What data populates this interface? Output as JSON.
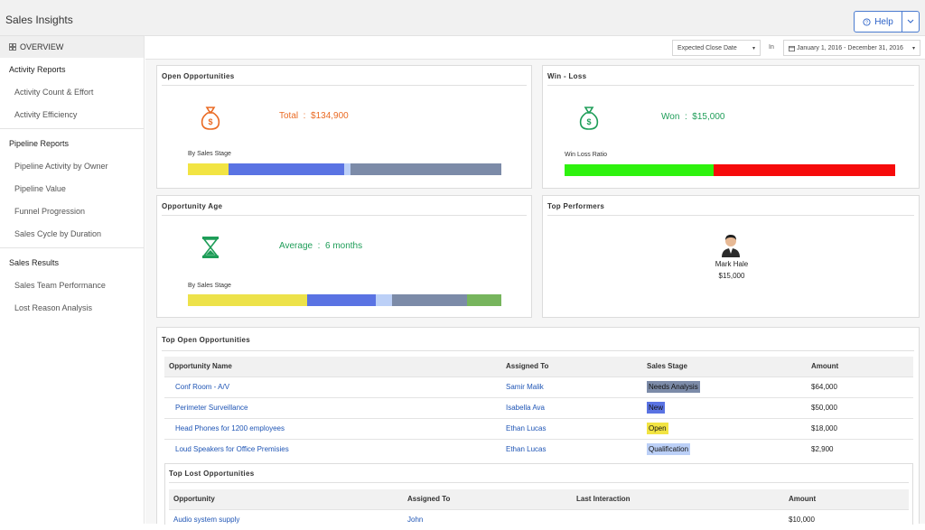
{
  "header": {
    "title": "Sales Insights",
    "help_label": "Help",
    "colors": {
      "accent": "#2d63c8"
    }
  },
  "sidebar": {
    "overview_label": "OVERVIEW",
    "sections": [
      {
        "label": "Activity Reports",
        "items": [
          "Activity Count & Effort",
          "Activity Efficiency"
        ]
      },
      {
        "label": "Pipeline Reports",
        "items": [
          "Pipeline Activity by Owner",
          "Pipeline Value",
          "Funnel Progression",
          "Sales Cycle by Duration"
        ]
      },
      {
        "label": "Sales Results",
        "items": [
          "Sales Team Performance",
          "Lost Reason Analysis"
        ]
      }
    ]
  },
  "filters": {
    "date_field": "Expected Close Date",
    "in_label": "In",
    "date_range": "January 1, 2016 - December 31, 2016"
  },
  "open_opportunities": {
    "title": "Open Opportunities",
    "total_label": "Total",
    "total_value": "$134,900",
    "color": "#ea6a23",
    "bar_label": "By Sales Stage",
    "bar": [
      {
        "color": "#f2e443",
        "fraction": 0.13
      },
      {
        "color": "#5a73e3",
        "fraction": 0.37
      },
      {
        "color": "#bcd0f7",
        "fraction": 0.02
      },
      {
        "color": "#7c8ba8",
        "fraction": 0.48
      }
    ]
  },
  "win_loss": {
    "title": "Win - Loss",
    "won_label": "Won",
    "won_value": "$15,000",
    "color": "#1e9d58",
    "bar_label": "Win Loss Ratio",
    "bar": [
      {
        "color": "#2ef20e",
        "fraction": 0.45
      },
      {
        "color": "#f60b0b",
        "fraction": 0.55
      }
    ]
  },
  "opportunity_age": {
    "title": "Opportunity Age",
    "average_label": "Average",
    "average_value": "6 months",
    "color": "#1e9d58",
    "bar_label": "By Sales Stage",
    "bar": [
      {
        "color": "#ede24a",
        "fraction": 0.38
      },
      {
        "color": "#5a73e3",
        "fraction": 0.22
      },
      {
        "color": "#bcd0f7",
        "fraction": 0.05
      },
      {
        "color": "#7c8ba8",
        "fraction": 0.24
      },
      {
        "color": "#77b55d",
        "fraction": 0.11
      }
    ]
  },
  "top_performers": {
    "title": "Top Performers",
    "name": "Mark Hale",
    "amount": "$15,000"
  },
  "top_open": {
    "title": "Top Open Opportunities",
    "columns": [
      "Opportunity Name",
      "Assigned To",
      "Sales Stage",
      "Amount"
    ],
    "rows": [
      {
        "name": "Conf Room - A/V",
        "assigned": "Samir Malik",
        "stage": "Needs Analysis",
        "stage_color": "#7c8ba8",
        "amount": "$64,000"
      },
      {
        "name": "Perimeter Surveillance",
        "assigned": "Isabella Ava",
        "stage": "New",
        "stage_color": "#5a73e3",
        "amount": "$50,000"
      },
      {
        "name": "Head Phones for 1200 employees",
        "assigned": "Ethan Lucas",
        "stage": "Open",
        "stage_color": "#f2e443",
        "amount": "$18,000"
      },
      {
        "name": "Loud Speakers for Office Premisies",
        "assigned": "Ethan Lucas",
        "stage": "Qualification",
        "stage_color": "#bcd0f7",
        "amount": "$2,900"
      }
    ]
  },
  "top_lost": {
    "title": "Top Lost Opportunities",
    "columns": [
      "Opportunity",
      "Assigned To",
      "Last Interaction",
      "Amount"
    ],
    "rows": [
      {
        "name": "Audio system supply",
        "assigned": "John",
        "last": "",
        "amount": "$10,000"
      }
    ]
  }
}
